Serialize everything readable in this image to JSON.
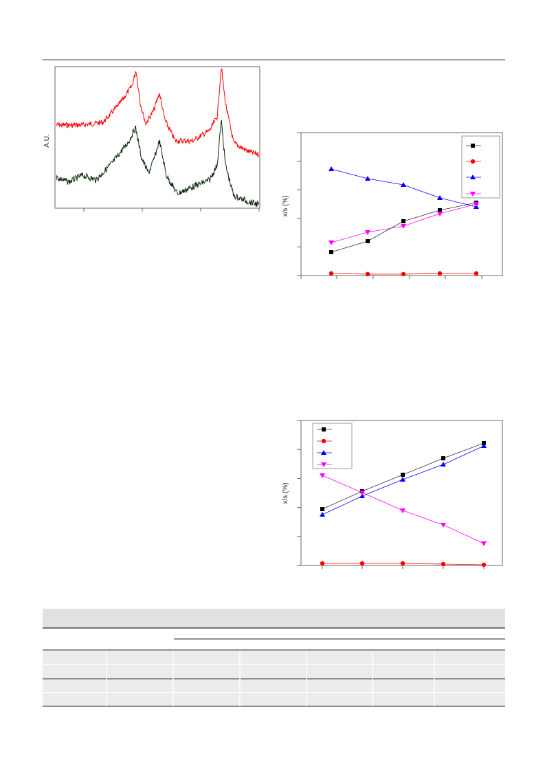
{
  "spectrum_figure": {
    "y_label": "A.U."
  },
  "ratio_figures": [
    {
      "y_label": "x/s (%)"
    },
    {
      "y_label": "x/s (%)"
    }
  ]
}
